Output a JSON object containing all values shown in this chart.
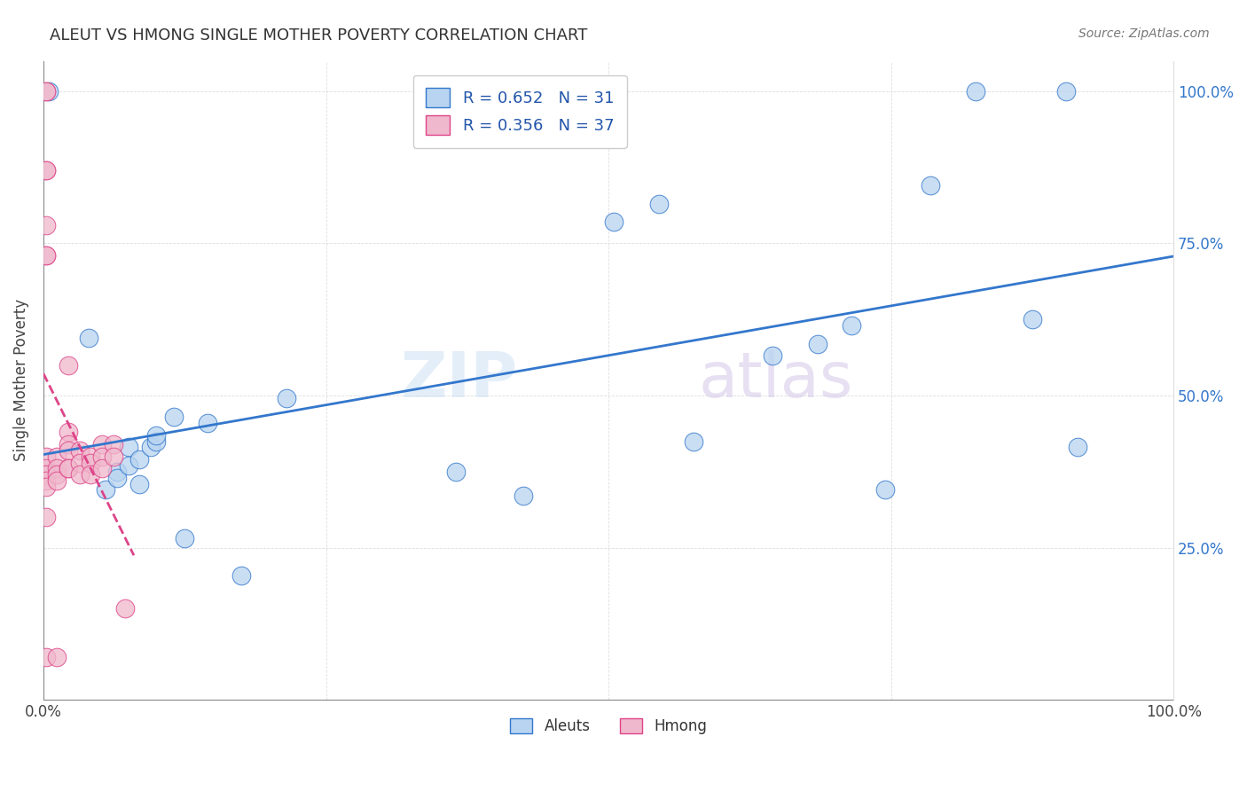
{
  "title": "ALEUT VS HMONG SINGLE MOTHER POVERTY CORRELATION CHART",
  "source": "Source: ZipAtlas.com",
  "ylabel": "Single Mother Poverty",
  "xlim": [
    0,
    1
  ],
  "ylim": [
    0,
    1.05
  ],
  "aleuts_R": 0.652,
  "aleuts_N": 31,
  "hmong_R": 0.356,
  "hmong_N": 37,
  "aleuts_color": "#b8d4f0",
  "hmong_color": "#f0b8cc",
  "trendline_aleuts_color": "#3377cc",
  "trendline_hmong_color": "#dd4488",
  "watermark_zip": "ZIP",
  "watermark_atlas": "atlas",
  "aleuts_x": [
    0.005,
    0.04,
    0.055,
    0.065,
    0.065,
    0.075,
    0.075,
    0.085,
    0.085,
    0.095,
    0.1,
    0.1,
    0.115,
    0.125,
    0.145,
    0.175,
    0.215,
    0.365,
    0.425,
    0.505,
    0.545,
    0.575,
    0.645,
    0.685,
    0.715,
    0.745,
    0.785,
    0.825,
    0.875,
    0.905,
    0.915
  ],
  "aleuts_y": [
    1.0,
    0.595,
    0.345,
    0.375,
    0.365,
    0.415,
    0.385,
    0.395,
    0.355,
    0.415,
    0.425,
    0.435,
    0.465,
    0.265,
    0.455,
    0.205,
    0.495,
    0.375,
    0.335,
    0.785,
    0.815,
    0.425,
    0.565,
    0.585,
    0.615,
    0.345,
    0.845,
    1.0,
    0.625,
    1.0,
    0.415
  ],
  "hmong_x": [
    0.002,
    0.002,
    0.002,
    0.002,
    0.002,
    0.002,
    0.002,
    0.002,
    0.002,
    0.002,
    0.002,
    0.002,
    0.002,
    0.002,
    0.012,
    0.012,
    0.012,
    0.012,
    0.012,
    0.022,
    0.022,
    0.022,
    0.022,
    0.022,
    0.022,
    0.032,
    0.032,
    0.032,
    0.042,
    0.042,
    0.042,
    0.052,
    0.052,
    0.052,
    0.062,
    0.062,
    0.072
  ],
  "hmong_y": [
    1.0,
    1.0,
    0.87,
    0.87,
    0.78,
    0.73,
    0.73,
    0.4,
    0.38,
    0.37,
    0.36,
    0.35,
    0.3,
    0.07,
    0.4,
    0.38,
    0.37,
    0.36,
    0.07,
    0.55,
    0.44,
    0.42,
    0.41,
    0.38,
    0.38,
    0.41,
    0.39,
    0.37,
    0.4,
    0.39,
    0.37,
    0.42,
    0.4,
    0.38,
    0.42,
    0.4,
    0.15
  ],
  "grid_color": "#dddddd",
  "ytick_vals": [
    0.25,
    0.5,
    0.75,
    1.0
  ],
  "ytick_labels": [
    "25.0%",
    "50.0%",
    "75.0%",
    "100.0%"
  ],
  "xtick_vals": [
    0.0,
    0.25,
    0.5,
    0.75,
    1.0
  ],
  "xtick_labels_bottom": [
    "0.0%",
    "",
    "",
    "",
    "100.0%"
  ]
}
